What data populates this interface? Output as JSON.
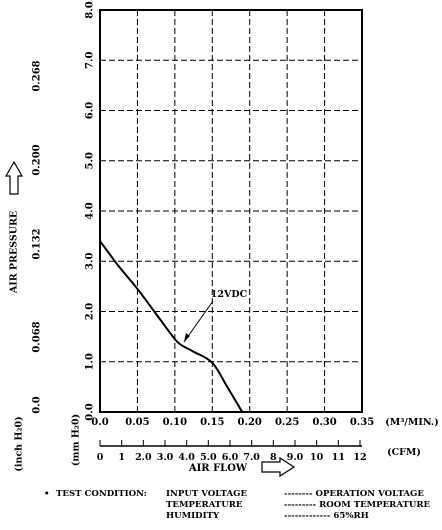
{
  "chart_data": {
    "type": "line",
    "series": [
      {
        "name": "12VDC",
        "x": [
          0.0,
          0.01,
          0.025,
          0.05,
          0.075,
          0.1,
          0.11,
          0.125,
          0.15,
          0.17,
          0.19
        ],
        "y": [
          3.4,
          3.2,
          2.9,
          2.45,
          1.95,
          1.45,
          1.32,
          1.2,
          0.98,
          0.5,
          0.0
        ]
      }
    ],
    "x_axis": {
      "unit": "(M³/MIN.)",
      "range": [
        0,
        0.35
      ],
      "ticks": [
        "0.0",
        "0.05",
        "0.10",
        "0.15",
        "0.20",
        "0.25",
        "0.30",
        "0.35"
      ]
    },
    "x_axis_cfm": {
      "unit": "(CFM)",
      "range": [
        0,
        12
      ],
      "ticks": [
        "0",
        "1",
        "2.0",
        "3.0",
        "4.0",
        "5.0",
        "6.0",
        "7.0",
        "8",
        "9.0",
        "10",
        "11",
        "12"
      ]
    },
    "x_title": "AIR FLOW",
    "y_axis_mm": {
      "unit": "(mm H₂0)",
      "range": [
        0,
        8
      ],
      "ticks": [
        "0.0",
        "1.0",
        "2.0",
        "3.0",
        "4.0",
        "5.0",
        "6.0",
        "7.0",
        "8.0"
      ]
    },
    "y_axis_inch": {
      "unit": "(inch H₂0)",
      "ticks": [
        "0.0",
        "0.068",
        "0.132",
        "0.200",
        "0.268"
      ]
    },
    "y_title": "AIR PRESSURE",
    "curve_label": "12VDC",
    "grid": true
  },
  "test_conditions": {
    "bullet": "•",
    "heading": "TEST CONDITION:",
    "rows": [
      {
        "label": "INPUT VOLTAGE",
        "value": "-------- OPERATION VOLTAGE"
      },
      {
        "label": "TEMPERATURE",
        "value": "--------- ROOM TEMPERATURE"
      },
      {
        "label": "HUMIDITY",
        "value": "------------- 65%RH"
      }
    ]
  },
  "colors": {
    "line": "#000000",
    "grid": "#000000",
    "background": "#ffffff"
  }
}
